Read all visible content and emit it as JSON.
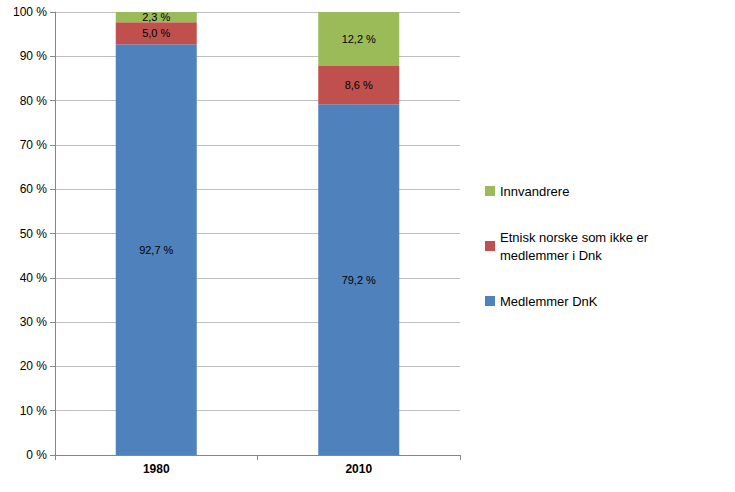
{
  "chart_data": {
    "type": "bar",
    "stacked": true,
    "data_labels": true,
    "grid": true,
    "legend": "right",
    "categories": [
      "1980",
      "2010"
    ],
    "ylim": [
      0,
      100
    ],
    "yticks": [
      {
        "value": 0,
        "label": "0 %"
      },
      {
        "value": 10,
        "label": "10 %"
      },
      {
        "value": 20,
        "label": "20 %"
      },
      {
        "value": 30,
        "label": "30 %"
      },
      {
        "value": 40,
        "label": "40 %"
      },
      {
        "value": 50,
        "label": "50 %"
      },
      {
        "value": 60,
        "label": "60 %"
      },
      {
        "value": 70,
        "label": "70 %"
      },
      {
        "value": 80,
        "label": "80 %"
      },
      {
        "value": 90,
        "label": "90 %"
      },
      {
        "value": 100,
        "label": "100 %"
      }
    ],
    "series": [
      {
        "name": "Medlemmer DnK",
        "color": "#4f81bd",
        "values": [
          92.7,
          79.2
        ],
        "value_labels": [
          "92,7 %",
          "79,2 %"
        ]
      },
      {
        "name": "Etnisk norske som ikke er medlemmer i Dnk",
        "color": "#c0504d",
        "values": [
          5.0,
          8.6
        ],
        "value_labels": [
          "5,0 %",
          "8,6 %"
        ]
      },
      {
        "name": "Innvandrere",
        "color": "#9bbb59",
        "values": [
          2.3,
          12.2
        ],
        "value_labels": [
          "2,3 %",
          "12,2 %"
        ]
      }
    ]
  }
}
